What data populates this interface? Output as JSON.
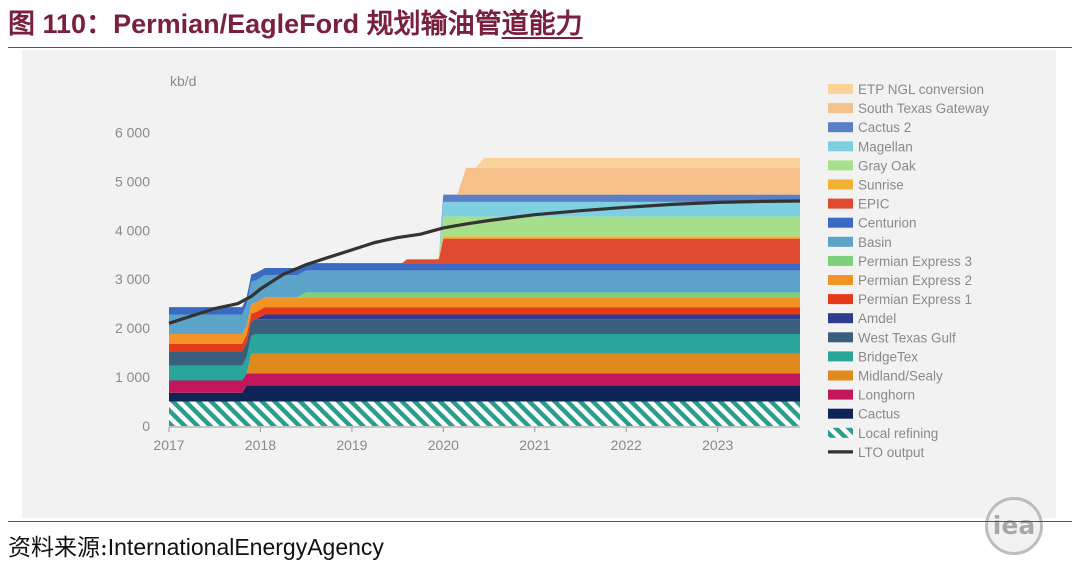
{
  "figure": {
    "title_prefix": "图 110：",
    "title_main": "Permian/EagleFord ",
    "title_cn_a": "规划输油管",
    "title_cn_b": "道能力",
    "source_label": "资料来源:",
    "source_text": "InternationalEnergyAgency",
    "logo_text": "iea"
  },
  "chart_data": {
    "type": "area",
    "stacked": true,
    "title": "",
    "xlabel": "",
    "ylabel": "kb/d",
    "ylim": [
      0,
      6500
    ],
    "xlim": [
      2017,
      2023.9
    ],
    "x_ticks": [
      "2017",
      "2018",
      "2019",
      "2020",
      "2021",
      "2022",
      "2023"
    ],
    "y_ticks": [
      "0",
      "1 000",
      "2 000",
      "3 000",
      "4 000",
      "5 000",
      "6 000"
    ],
    "y_tick_values": [
      0,
      1000,
      2000,
      3000,
      4000,
      5000,
      6000
    ],
    "grid": false,
    "legend_position": "right",
    "series": [
      {
        "name": "Local refining",
        "color": "#2a9d8f",
        "pattern": "hatch",
        "points": [
          [
            2017,
            500
          ],
          [
            2023.9,
            500
          ]
        ]
      },
      {
        "name": "Cactus",
        "color": "#0f2557",
        "points": [
          [
            2017,
            180
          ],
          [
            2017.8,
            180
          ],
          [
            2017.85,
            330
          ],
          [
            2023.9,
            330
          ]
        ]
      },
      {
        "name": "Longhorn",
        "color": "#c2185b",
        "points": [
          [
            2017,
            250
          ],
          [
            2023.9,
            250
          ]
        ]
      },
      {
        "name": "Midland/Sealy",
        "color": "#e08a1e",
        "points": [
          [
            2017,
            0
          ],
          [
            2017.85,
            0
          ],
          [
            2017.9,
            400
          ],
          [
            2023.9,
            400
          ]
        ]
      },
      {
        "name": "BridgeTex",
        "color": "#2aa59a",
        "points": [
          [
            2017,
            300
          ],
          [
            2017.8,
            300
          ],
          [
            2017.95,
            400
          ],
          [
            2023.9,
            400
          ]
        ]
      },
      {
        "name": "West Texas Gulf",
        "color": "#3a5f7d",
        "points": [
          [
            2017,
            300
          ],
          [
            2023.9,
            300
          ]
        ]
      },
      {
        "name": "Amdel",
        "color": "#2e3b8f",
        "points": [
          [
            2017,
            0
          ],
          [
            2017.95,
            0
          ],
          [
            2018.05,
            100
          ],
          [
            2023.9,
            100
          ]
        ]
      },
      {
        "name": "Permian Express 1",
        "color": "#e63b1b",
        "points": [
          [
            2017,
            150
          ],
          [
            2023.9,
            150
          ]
        ]
      },
      {
        "name": "Permian Express 2",
        "color": "#f39225",
        "points": [
          [
            2017,
            200
          ],
          [
            2023.9,
            200
          ]
        ]
      },
      {
        "name": "Permian Express 3",
        "color": "#7ed07a",
        "points": [
          [
            2017,
            0
          ],
          [
            2018.4,
            0
          ],
          [
            2018.5,
            100
          ],
          [
            2023.9,
            100
          ]
        ]
      },
      {
        "name": "Basin",
        "color": "#5ba3c8",
        "points": [
          [
            2017,
            400
          ],
          [
            2017.8,
            400
          ],
          [
            2017.9,
            450
          ],
          [
            2023.9,
            450
          ]
        ]
      },
      {
        "name": "Centurion",
        "color": "#3a6bc4",
        "points": [
          [
            2017,
            150
          ],
          [
            2023.9,
            150
          ]
        ]
      },
      {
        "name": "EPIC",
        "color": "#e04a2e",
        "points": [
          [
            2017,
            0
          ],
          [
            2019.55,
            0
          ],
          [
            2019.6,
            75
          ],
          [
            2019.95,
            75
          ],
          [
            2020,
            500
          ],
          [
            2023.9,
            500
          ]
        ]
      },
      {
        "name": "Sunrise",
        "color": "#f2b134",
        "points": [
          [
            2017,
            0
          ],
          [
            2019.9,
            0
          ],
          [
            2020,
            50
          ],
          [
            2023.9,
            50
          ]
        ]
      },
      {
        "name": "Gray Oak",
        "color": "#a7e08a",
        "points": [
          [
            2017,
            0
          ],
          [
            2019.95,
            0
          ],
          [
            2020,
            400
          ],
          [
            2023.9,
            400
          ]
        ]
      },
      {
        "name": "Magellan",
        "color": "#7ed0e0",
        "points": [
          [
            2017,
            0
          ],
          [
            2019.95,
            0
          ],
          [
            2020,
            300
          ],
          [
            2023.9,
            300
          ]
        ]
      },
      {
        "name": "Cactus 2",
        "color": "#5b7fc4",
        "points": [
          [
            2017,
            0
          ],
          [
            2019.95,
            0
          ],
          [
            2020,
            150
          ],
          [
            2023.9,
            150
          ]
        ]
      },
      {
        "name": "South Texas Gateway",
        "color": "#f6c08a",
        "points": [
          [
            2017,
            0
          ],
          [
            2020.15,
            0
          ],
          [
            2020.25,
            550
          ],
          [
            2023.9,
            550
          ]
        ]
      },
      {
        "name": "ETP NGL conversion",
        "color": "#f9d39a",
        "points": [
          [
            2017,
            0
          ],
          [
            2020.35,
            0
          ],
          [
            2020.45,
            200
          ],
          [
            2023.9,
            200
          ]
        ]
      }
    ],
    "line_series": {
      "name": "LTO output",
      "color": "#333333",
      "points": [
        [
          2017,
          2100
        ],
        [
          2017.25,
          2250
        ],
        [
          2017.5,
          2400
        ],
        [
          2017.75,
          2500
        ],
        [
          2017.9,
          2650
        ],
        [
          2018,
          2800
        ],
        [
          2018.25,
          3100
        ],
        [
          2018.5,
          3300
        ],
        [
          2018.75,
          3450
        ],
        [
          2019,
          3600
        ],
        [
          2019.25,
          3750
        ],
        [
          2019.5,
          3850
        ],
        [
          2019.75,
          3920
        ],
        [
          2020,
          4050
        ],
        [
          2020.25,
          4130
        ],
        [
          2020.5,
          4200
        ],
        [
          2020.75,
          4260
        ],
        [
          2021,
          4320
        ],
        [
          2021.5,
          4400
        ],
        [
          2022,
          4470
        ],
        [
          2022.5,
          4530
        ],
        [
          2023,
          4570
        ],
        [
          2023.5,
          4590
        ],
        [
          2023.9,
          4600
        ]
      ]
    },
    "legend": [
      "ETP NGL conversion",
      "South Texas Gateway",
      "Cactus 2",
      "Magellan",
      "Gray Oak",
      "Sunrise",
      "EPIC",
      "Centurion",
      "Basin",
      "Permian Express 3",
      "Permian Express 2",
      "Permian Express 1",
      "Amdel",
      "West Texas Gulf",
      "BridgeTex",
      "Midland/Sealy",
      "Longhorn",
      "Cactus",
      "Local refining",
      "LTO output"
    ]
  }
}
